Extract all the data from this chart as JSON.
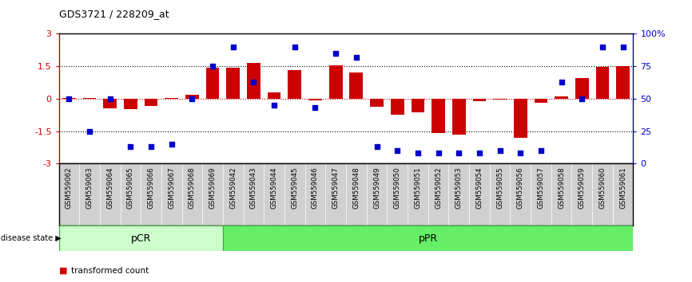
{
  "title": "GDS3721 / 228209_at",
  "samples": [
    "GSM559062",
    "GSM559063",
    "GSM559064",
    "GSM559065",
    "GSM559066",
    "GSM559067",
    "GSM559068",
    "GSM559069",
    "GSM559042",
    "GSM559043",
    "GSM559044",
    "GSM559045",
    "GSM559046",
    "GSM559047",
    "GSM559048",
    "GSM559049",
    "GSM559050",
    "GSM559051",
    "GSM559052",
    "GSM559053",
    "GSM559054",
    "GSM559055",
    "GSM559056",
    "GSM559057",
    "GSM559058",
    "GSM559059",
    "GSM559060",
    "GSM559061"
  ],
  "transformed_count": [
    0.02,
    0.02,
    -0.45,
    -0.5,
    -0.35,
    0.02,
    0.18,
    1.42,
    1.45,
    1.65,
    0.28,
    1.32,
    -0.08,
    1.55,
    1.22,
    -0.38,
    -0.75,
    -0.62,
    -1.6,
    -1.65,
    -0.12,
    -0.05,
    -1.82,
    -0.18,
    0.12,
    0.95,
    1.48,
    1.5
  ],
  "percentile_rank": [
    50,
    25,
    50,
    13,
    13,
    15,
    50,
    75,
    90,
    63,
    45,
    90,
    43,
    85,
    82,
    13,
    10,
    8,
    8,
    8,
    8,
    10,
    8,
    10,
    63,
    50,
    90,
    90
  ],
  "groups": {
    "pCR": [
      0,
      8
    ],
    "pPR": [
      8,
      28
    ]
  },
  "group_colors": {
    "pCR": "#ccffcc",
    "pPR": "#66ee66"
  },
  "bar_color": "#cc0000",
  "dot_color": "#0000cc",
  "ylim": [
    -3.0,
    3.0
  ],
  "yticks_left": [
    -3,
    -1.5,
    0,
    1.5,
    3
  ],
  "yticks_right": [
    0,
    25,
    50,
    75,
    100
  ],
  "background_color": "#ffffff",
  "xticklabel_bg": "#d0d0d0"
}
